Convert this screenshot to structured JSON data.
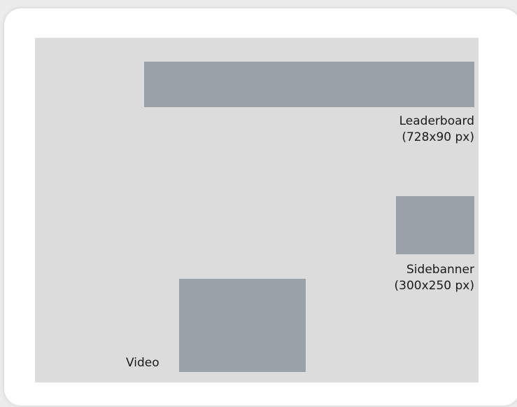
{
  "ad_slots": [
    {
      "name": "Leaderboard",
      "size": "(728x90 px)"
    },
    {
      "name": "Sidebanner",
      "size": "(300x250 px)"
    },
    {
      "name": "Video"
    }
  ],
  "colors": {
    "page_background": "#ececec",
    "card": "#ffffff",
    "canvas": "#dcdcdc",
    "ad_slot": "#9ba2a7",
    "text": "#1a1a1a"
  }
}
